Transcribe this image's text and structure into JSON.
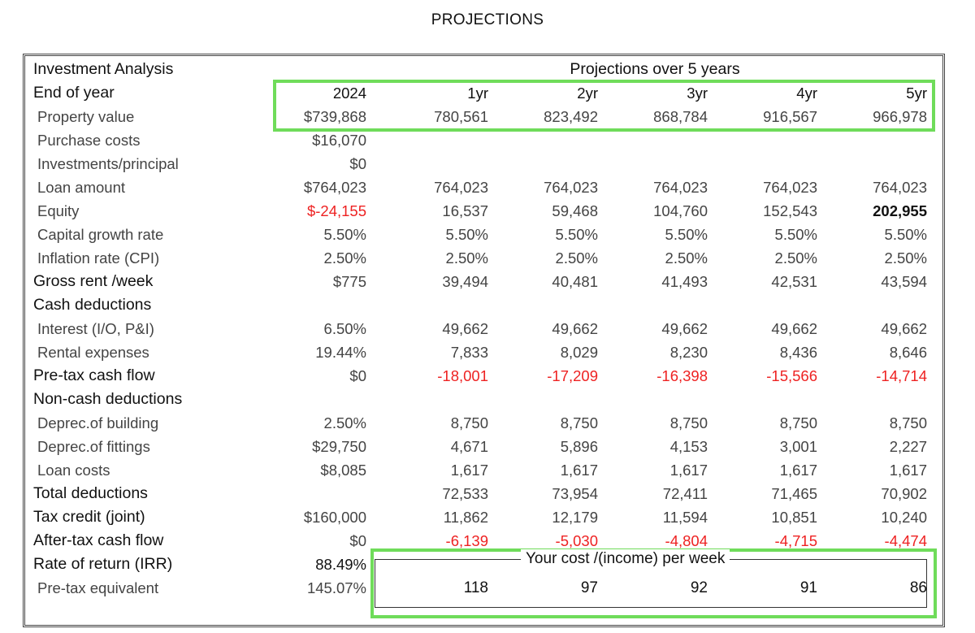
{
  "title": "PROJECTIONS",
  "table": {
    "section_title": "Investment Analysis",
    "projections_header": "Projections over 5 years",
    "columns": [
      "2024",
      "1yr",
      "2yr",
      "3yr",
      "4yr",
      "5yr"
    ],
    "rows": [
      {
        "label": "End of year",
        "style": "head",
        "values": [
          "2024",
          "1yr",
          "2yr",
          "3yr",
          "4yr",
          "5yr"
        ]
      },
      {
        "label": "Property value",
        "style": "sub",
        "values": [
          "$739,868",
          "780,561",
          "823,492",
          "868,784",
          "916,567",
          "966,978"
        ]
      },
      {
        "label": "Purchase costs",
        "style": "sub",
        "values": [
          "$16,070",
          "",
          "",
          "",
          "",
          ""
        ]
      },
      {
        "label": "Investments/principal",
        "style": "sub",
        "values": [
          "$0",
          "",
          "",
          "",
          "",
          ""
        ]
      },
      {
        "label": "Loan amount",
        "style": "sub",
        "values": [
          "$764,023",
          "764,023",
          "764,023",
          "764,023",
          "764,023",
          "764,023"
        ]
      },
      {
        "label": "Equity",
        "style": "sub",
        "values": [
          "$-24,155",
          "16,537",
          "59,468",
          "104,760",
          "152,543",
          "202,955"
        ]
      },
      {
        "label": "Capital growth rate",
        "style": "sub",
        "values": [
          "5.50%",
          "5.50%",
          "5.50%",
          "5.50%",
          "5.50%",
          "5.50%"
        ]
      },
      {
        "label": "Inflation rate (CPI)",
        "style": "sub",
        "values": [
          "2.50%",
          "2.50%",
          "2.50%",
          "2.50%",
          "2.50%",
          "2.50%"
        ]
      },
      {
        "label": "Gross rent /week",
        "style": "head",
        "values": [
          "$775",
          "39,494",
          "40,481",
          "41,493",
          "42,531",
          "43,594"
        ]
      },
      {
        "label": "Cash deductions",
        "style": "head",
        "values": [
          "",
          "",
          "",
          "",
          "",
          ""
        ]
      },
      {
        "label": "Interest (I/O, P&I)",
        "style": "sub",
        "values": [
          "6.50%",
          "49,662",
          "49,662",
          "49,662",
          "49,662",
          "49,662"
        ]
      },
      {
        "label": "Rental expenses",
        "style": "sub",
        "values": [
          "19.44%",
          "7,833",
          "8,029",
          "8,230",
          "8,436",
          "8,646"
        ]
      },
      {
        "label": "Pre-tax cash flow",
        "style": "head",
        "values": [
          "$0",
          "-18,001",
          "-17,209",
          "-16,398",
          "-15,566",
          "-14,714"
        ]
      },
      {
        "label": "Non-cash deductions",
        "style": "head",
        "values": [
          "",
          "",
          "",
          "",
          "",
          ""
        ]
      },
      {
        "label": "Deprec.of building",
        "style": "sub",
        "values": [
          "2.50%",
          "8,750",
          "8,750",
          "8,750",
          "8,750",
          "8,750"
        ]
      },
      {
        "label": "Deprec.of fittings",
        "style": "sub",
        "values": [
          "$29,750",
          "4,671",
          "5,896",
          "4,153",
          "3,001",
          "2,227"
        ]
      },
      {
        "label": "Loan costs",
        "style": "sub",
        "values": [
          "$8,085",
          "1,617",
          "1,617",
          "1,617",
          "1,617",
          "1,617"
        ]
      },
      {
        "label": "Total deductions",
        "style": "head",
        "values": [
          "",
          "72,533",
          "73,954",
          "72,411",
          "71,465",
          "70,902"
        ]
      },
      {
        "label": "Tax credit (joint)",
        "style": "head",
        "values": [
          "$160,000",
          "11,862",
          "12,179",
          "11,594",
          "10,851",
          "10,240"
        ]
      },
      {
        "label": "After-tax cash flow",
        "style": "head",
        "values": [
          "$0",
          "-6,139",
          "-5,030",
          "-4,804",
          "-4,715",
          "-4,474"
        ]
      },
      {
        "label": "Rate of return (IRR)",
        "style": "head",
        "values": [
          "88.49%",
          "",
          "",
          "",
          "",
          ""
        ]
      },
      {
        "label": "Pre-tax equivalent",
        "style": "sub",
        "values": [
          "145.07%",
          "",
          "",
          "",
          "",
          ""
        ]
      }
    ],
    "weekly_cost": {
      "label": "Your cost /(income) per week",
      "values": [
        "118",
        "97",
        "92",
        "91",
        "86"
      ]
    }
  },
  "colors": {
    "negative": "#ee2222",
    "highlight": "#6fdc5a"
  }
}
